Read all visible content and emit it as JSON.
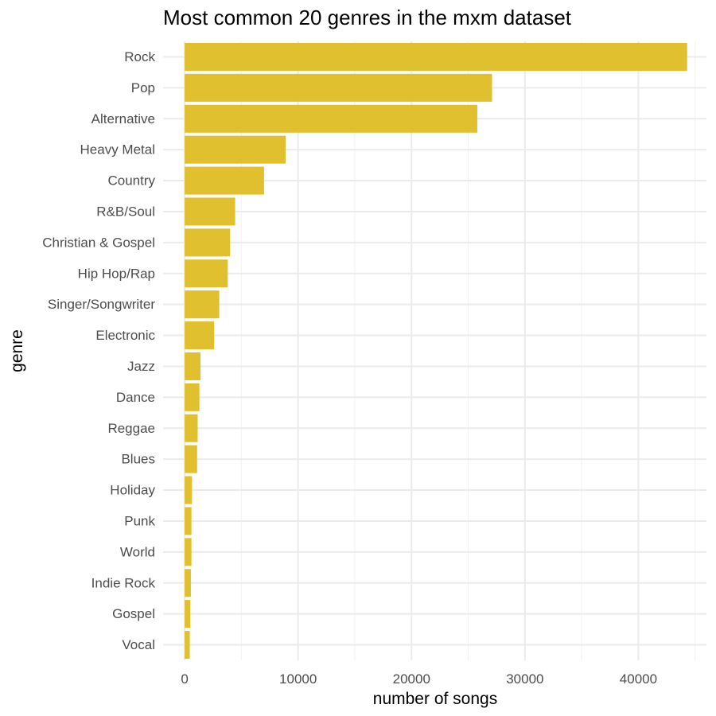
{
  "chart_data": {
    "type": "bar",
    "orientation": "horizontal",
    "title": "Most common 20 genres in the mxm dataset",
    "xlabel": "number of songs",
    "ylabel": "genre",
    "categories": [
      "Rock",
      "Pop",
      "Alternative",
      "Heavy Metal",
      "Country",
      "R&B/Soul",
      "Christian & Gospel",
      "Hip Hop/Rap",
      "Singer/Songwriter",
      "Electronic",
      "Jazz",
      "Dance",
      "Reggae",
      "Blues",
      "Holiday",
      "Punk",
      "World",
      "Indie Rock",
      "Gospel",
      "Vocal"
    ],
    "values": [
      44300,
      27100,
      25800,
      8900,
      7000,
      4450,
      4000,
      3800,
      3050,
      2600,
      1400,
      1300,
      1150,
      1100,
      650,
      600,
      600,
      550,
      500,
      450
    ],
    "xlim": [
      -1900,
      46000
    ],
    "xticks": [
      0,
      10000,
      20000,
      30000,
      40000
    ],
    "xtick_labels": [
      "0",
      "10000",
      "20000",
      "30000",
      "40000"
    ],
    "grid": true,
    "bar_color": "#e0c02e",
    "theme": "minimal"
  }
}
